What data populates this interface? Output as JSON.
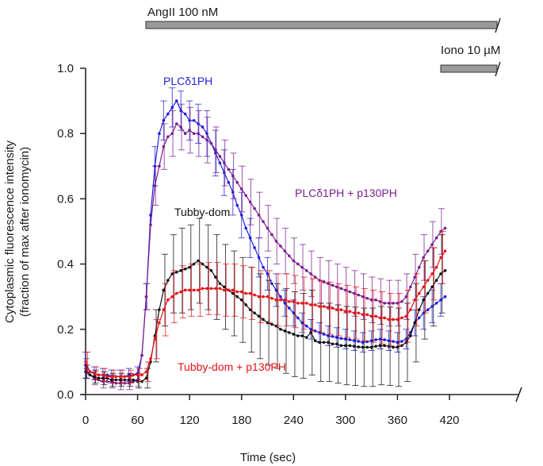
{
  "chart_data": {
    "type": "line",
    "title": "",
    "xlabel": "Time  (sec)",
    "ylabel_line1": "Cytoplasmic fluorescence intensity",
    "ylabel_line2": "(fraction of max after ionomycin)",
    "xlim": [
      0,
      420
    ],
    "ylim": [
      0,
      1.0
    ],
    "x_ticks": [
      0,
      60,
      120,
      180,
      240,
      300,
      360,
      420
    ],
    "x_tick_labels": [
      "0",
      "60",
      "120",
      "180",
      "240",
      "300",
      "360",
      "420"
    ],
    "y_ticks": [
      0,
      0.2,
      0.4,
      0.6,
      0.8,
      1.0
    ],
    "y_tick_labels": [
      "0.0",
      "0.2",
      "0.4",
      "0.6",
      "0.8",
      "1.0"
    ],
    "grid": false,
    "axis_break": "right",
    "treatment_bars": [
      {
        "label": "AngII 100 nM",
        "start": 60,
        "end": 420
      },
      {
        "label": "Iono 10 µM",
        "start": 360,
        "end": 420
      }
    ],
    "x": [
      0,
      5,
      10,
      15,
      20,
      25,
      30,
      35,
      40,
      45,
      50,
      55,
      60,
      65,
      70,
      75,
      80,
      85,
      90,
      95,
      100,
      105,
      110,
      115,
      120,
      125,
      130,
      135,
      140,
      145,
      150,
      155,
      160,
      165,
      170,
      175,
      180,
      185,
      190,
      195,
      200,
      205,
      210,
      215,
      220,
      225,
      230,
      235,
      240,
      245,
      250,
      255,
      260,
      265,
      270,
      275,
      280,
      285,
      290,
      295,
      300,
      305,
      310,
      315,
      320,
      325,
      330,
      335,
      340,
      345,
      350,
      355,
      360,
      365,
      370,
      375,
      380,
      385,
      390,
      395,
      400,
      405,
      410,
      415
    ],
    "series": [
      {
        "name": "PLCδ1PH",
        "color": "#1f1fdc",
        "label_at": [
          105,
          0.94
        ],
        "values": [
          0.09,
          0.07,
          0.065,
          0.06,
          0.06,
          0.06,
          0.055,
          0.055,
          0.055,
          0.055,
          0.06,
          0.06,
          0.065,
          0.12,
          0.3,
          0.55,
          0.7,
          0.8,
          0.84,
          0.86,
          0.88,
          0.9,
          0.87,
          0.86,
          0.84,
          0.84,
          0.83,
          0.82,
          0.8,
          0.77,
          0.74,
          0.71,
          0.68,
          0.65,
          0.62,
          0.58,
          0.55,
          0.51,
          0.48,
          0.45,
          0.42,
          0.39,
          0.37,
          0.34,
          0.32,
          0.3,
          0.28,
          0.265,
          0.25,
          0.235,
          0.22,
          0.21,
          0.2,
          0.195,
          0.19,
          0.185,
          0.18,
          0.178,
          0.175,
          0.172,
          0.17,
          0.168,
          0.165,
          0.163,
          0.16,
          0.162,
          0.165,
          0.168,
          0.17,
          0.168,
          0.165,
          0.163,
          0.16,
          0.163,
          0.17,
          0.19,
          0.22,
          0.235,
          0.25,
          0.26,
          0.27,
          0.28,
          0.29,
          0.3
        ],
        "err": [
          0.04,
          0.03,
          0.02,
          0.02,
          0.02,
          0.02,
          0.02,
          0.02,
          0.02,
          0.02,
          0.02,
          0.02,
          0.02,
          0.03,
          0.04,
          0.05,
          0.06,
          0.06,
          0.06,
          0.06,
          0.06,
          0.06,
          0.06,
          0.06,
          0.06,
          0.06,
          0.06,
          0.06,
          0.07,
          0.07,
          0.07,
          0.07,
          0.07,
          0.07,
          0.07,
          0.07,
          0.07,
          0.07,
          0.06,
          0.06,
          0.06,
          0.06,
          0.05,
          0.05,
          0.05,
          0.05,
          0.04,
          0.04,
          0.04,
          0.04,
          0.03,
          0.03,
          0.03,
          0.03,
          0.03,
          0.03,
          0.03,
          0.03,
          0.03,
          0.03,
          0.03,
          0.03,
          0.03,
          0.03,
          0.03,
          0.03,
          0.03,
          0.03,
          0.03,
          0.03,
          0.03,
          0.03,
          0.03,
          0.03,
          0.03,
          0.04,
          0.04,
          0.05,
          0.05,
          0.05,
          0.05,
          0.05,
          0.05,
          0.05
        ]
      },
      {
        "name": "PLCδ1PH + p130PH",
        "color": "#7b1f8e",
        "label_at": [
          265,
          0.62
        ],
        "values": [
          0.08,
          0.06,
          0.05,
          0.045,
          0.04,
          0.04,
          0.04,
          0.035,
          0.035,
          0.035,
          0.035,
          0.04,
          0.045,
          0.12,
          0.3,
          0.52,
          0.64,
          0.7,
          0.76,
          0.79,
          0.8,
          0.83,
          0.82,
          0.8,
          0.81,
          0.8,
          0.8,
          0.79,
          0.78,
          0.77,
          0.75,
          0.73,
          0.71,
          0.69,
          0.67,
          0.65,
          0.63,
          0.61,
          0.59,
          0.57,
          0.55,
          0.53,
          0.51,
          0.49,
          0.47,
          0.455,
          0.44,
          0.425,
          0.41,
          0.4,
          0.39,
          0.38,
          0.37,
          0.36,
          0.35,
          0.345,
          0.34,
          0.335,
          0.33,
          0.325,
          0.32,
          0.315,
          0.31,
          0.305,
          0.3,
          0.295,
          0.29,
          0.29,
          0.285,
          0.28,
          0.28,
          0.28,
          0.28,
          0.285,
          0.3,
          0.33,
          0.36,
          0.39,
          0.42,
          0.44,
          0.46,
          0.48,
          0.5,
          0.51
        ],
        "err": [
          0.03,
          0.02,
          0.02,
          0.02,
          0.02,
          0.02,
          0.02,
          0.02,
          0.02,
          0.02,
          0.02,
          0.02,
          0.02,
          0.03,
          0.04,
          0.05,
          0.06,
          0.06,
          0.07,
          0.07,
          0.07,
          0.07,
          0.07,
          0.07,
          0.07,
          0.07,
          0.07,
          0.07,
          0.07,
          0.07,
          0.07,
          0.07,
          0.07,
          0.07,
          0.07,
          0.07,
          0.07,
          0.07,
          0.07,
          0.07,
          0.07,
          0.07,
          0.07,
          0.07,
          0.07,
          0.07,
          0.07,
          0.07,
          0.07,
          0.07,
          0.07,
          0.07,
          0.07,
          0.07,
          0.07,
          0.07,
          0.07,
          0.07,
          0.07,
          0.07,
          0.07,
          0.07,
          0.07,
          0.07,
          0.07,
          0.07,
          0.07,
          0.07,
          0.07,
          0.07,
          0.07,
          0.07,
          0.07,
          0.07,
          0.07,
          0.07,
          0.07,
          0.07,
          0.07,
          0.07,
          0.07,
          0.07,
          0.07,
          0.07
        ]
      },
      {
        "name": "Tubby-dom",
        "color": "#111111",
        "label_at": [
          100,
          0.55
        ],
        "values": [
          0.07,
          0.06,
          0.055,
          0.05,
          0.05,
          0.05,
          0.045,
          0.045,
          0.045,
          0.045,
          0.045,
          0.045,
          0.04,
          0.04,
          0.05,
          0.1,
          0.18,
          0.26,
          0.32,
          0.35,
          0.37,
          0.375,
          0.38,
          0.385,
          0.39,
          0.4,
          0.41,
          0.4,
          0.39,
          0.38,
          0.36,
          0.34,
          0.33,
          0.32,
          0.31,
          0.3,
          0.29,
          0.275,
          0.26,
          0.25,
          0.24,
          0.23,
          0.22,
          0.215,
          0.21,
          0.2,
          0.195,
          0.19,
          0.185,
          0.18,
          0.18,
          0.175,
          0.19,
          0.165,
          0.16,
          0.16,
          0.16,
          0.155,
          0.155,
          0.15,
          0.15,
          0.15,
          0.148,
          0.146,
          0.145,
          0.145,
          0.145,
          0.148,
          0.15,
          0.15,
          0.148,
          0.145,
          0.145,
          0.15,
          0.16,
          0.18,
          0.22,
          0.26,
          0.29,
          0.31,
          0.33,
          0.35,
          0.37,
          0.38
        ],
        "err": [
          0.02,
          0.02,
          0.02,
          0.02,
          0.02,
          0.02,
          0.02,
          0.02,
          0.02,
          0.02,
          0.02,
          0.02,
          0.02,
          0.02,
          0.03,
          0.05,
          0.08,
          0.1,
          0.11,
          0.12,
          0.12,
          0.13,
          0.13,
          0.13,
          0.13,
          0.13,
          0.13,
          0.13,
          0.13,
          0.13,
          0.13,
          0.13,
          0.13,
          0.13,
          0.13,
          0.13,
          0.13,
          0.13,
          0.13,
          0.13,
          0.13,
          0.13,
          0.13,
          0.13,
          0.13,
          0.13,
          0.13,
          0.13,
          0.13,
          0.13,
          0.13,
          0.13,
          0.13,
          0.13,
          0.12,
          0.12,
          0.12,
          0.12,
          0.12,
          0.12,
          0.12,
          0.12,
          0.12,
          0.12,
          0.12,
          0.12,
          0.12,
          0.12,
          0.12,
          0.12,
          0.12,
          0.12,
          0.12,
          0.12,
          0.12,
          0.12,
          0.12,
          0.12,
          0.12,
          0.12,
          0.12,
          0.12,
          0.12,
          0.12
        ]
      },
      {
        "name": "Tubby-dom + p130PH",
        "color": "#e8141a",
        "label_at": [
          106,
          0.1
        ],
        "values": [
          0.1,
          0.07,
          0.065,
          0.06,
          0.06,
          0.055,
          0.055,
          0.055,
          0.055,
          0.055,
          0.055,
          0.06,
          0.06,
          0.06,
          0.07,
          0.11,
          0.17,
          0.22,
          0.26,
          0.29,
          0.3,
          0.31,
          0.315,
          0.32,
          0.32,
          0.32,
          0.32,
          0.325,
          0.325,
          0.325,
          0.325,
          0.325,
          0.32,
          0.32,
          0.32,
          0.315,
          0.315,
          0.31,
          0.31,
          0.305,
          0.3,
          0.3,
          0.3,
          0.295,
          0.29,
          0.29,
          0.29,
          0.285,
          0.285,
          0.28,
          0.28,
          0.28,
          0.275,
          0.275,
          0.27,
          0.27,
          0.265,
          0.265,
          0.26,
          0.26,
          0.255,
          0.255,
          0.25,
          0.25,
          0.245,
          0.245,
          0.24,
          0.24,
          0.235,
          0.235,
          0.23,
          0.23,
          0.23,
          0.235,
          0.24,
          0.26,
          0.29,
          0.31,
          0.33,
          0.35,
          0.37,
          0.39,
          0.42,
          0.44
        ],
        "err": [
          0.03,
          0.02,
          0.02,
          0.02,
          0.02,
          0.02,
          0.02,
          0.02,
          0.02,
          0.02,
          0.02,
          0.02,
          0.02,
          0.02,
          0.03,
          0.04,
          0.06,
          0.07,
          0.08,
          0.08,
          0.08,
          0.08,
          0.08,
          0.08,
          0.08,
          0.08,
          0.08,
          0.08,
          0.08,
          0.08,
          0.08,
          0.08,
          0.08,
          0.08,
          0.08,
          0.08,
          0.08,
          0.08,
          0.08,
          0.08,
          0.08,
          0.08,
          0.08,
          0.08,
          0.08,
          0.08,
          0.08,
          0.08,
          0.08,
          0.08,
          0.08,
          0.08,
          0.08,
          0.08,
          0.08,
          0.08,
          0.08,
          0.08,
          0.08,
          0.08,
          0.08,
          0.08,
          0.08,
          0.08,
          0.08,
          0.08,
          0.08,
          0.08,
          0.08,
          0.08,
          0.08,
          0.08,
          0.08,
          0.08,
          0.08,
          0.08,
          0.08,
          0.08,
          0.08,
          0.08,
          0.08,
          0.08,
          0.08,
          0.08
        ]
      }
    ]
  }
}
